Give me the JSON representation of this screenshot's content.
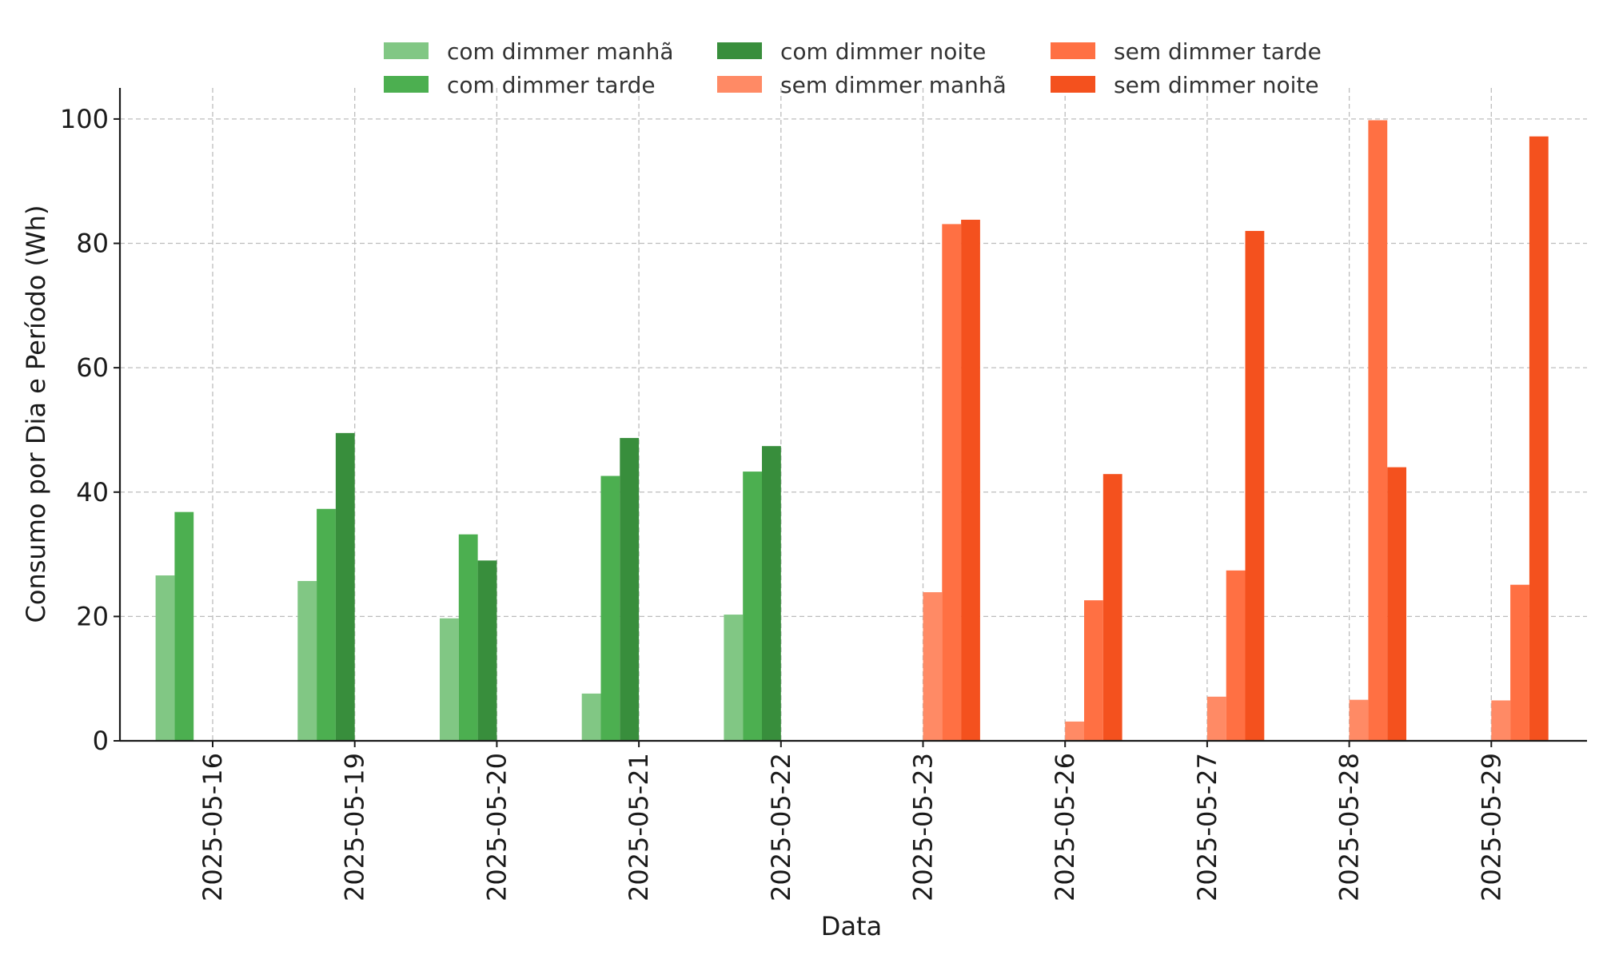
{
  "chart_data": {
    "type": "bar",
    "xlabel": "Data",
    "ylabel": "Consumo por Dia e Período (Wh)",
    "ylim": [
      0,
      105
    ],
    "yticks": [
      0,
      20,
      40,
      60,
      80,
      100
    ],
    "grid": true,
    "legend_position": "top-center",
    "categories": [
      "2025-05-16",
      "2025-05-19",
      "2025-05-20",
      "2025-05-21",
      "2025-05-22",
      "2025-05-23",
      "2025-05-26",
      "2025-05-27",
      "2025-05-28",
      "2025-05-29"
    ],
    "series": [
      {
        "name": "com dimmer manhã",
        "color": "#81c784",
        "values": [
          26.6,
          25.7,
          19.7,
          7.6,
          20.3,
          0,
          0,
          0,
          0,
          0
        ]
      },
      {
        "name": "com dimmer tarde",
        "color": "#4caf50",
        "values": [
          36.8,
          37.3,
          33.2,
          42.6,
          43.3,
          0,
          0,
          0,
          0,
          0
        ]
      },
      {
        "name": "com dimmer noite",
        "color": "#388e3c",
        "values": [
          0,
          49.5,
          29.0,
          48.7,
          47.4,
          0,
          0,
          0,
          0,
          0
        ]
      },
      {
        "name": "sem dimmer manhã",
        "color": "#ff8a65",
        "values": [
          0,
          0,
          0,
          0,
          0,
          23.9,
          3.1,
          7.1,
          6.6,
          6.5
        ]
      },
      {
        "name": "sem dimmer tarde",
        "color": "#ff7043",
        "values": [
          0,
          0,
          0,
          0,
          0,
          83.1,
          22.6,
          27.4,
          99.8,
          25.1
        ]
      },
      {
        "name": "sem dimmer noite",
        "color": "#f4511e",
        "values": [
          0,
          0,
          0,
          0,
          0,
          83.8,
          42.9,
          82.0,
          44.0,
          97.2
        ]
      }
    ]
  }
}
